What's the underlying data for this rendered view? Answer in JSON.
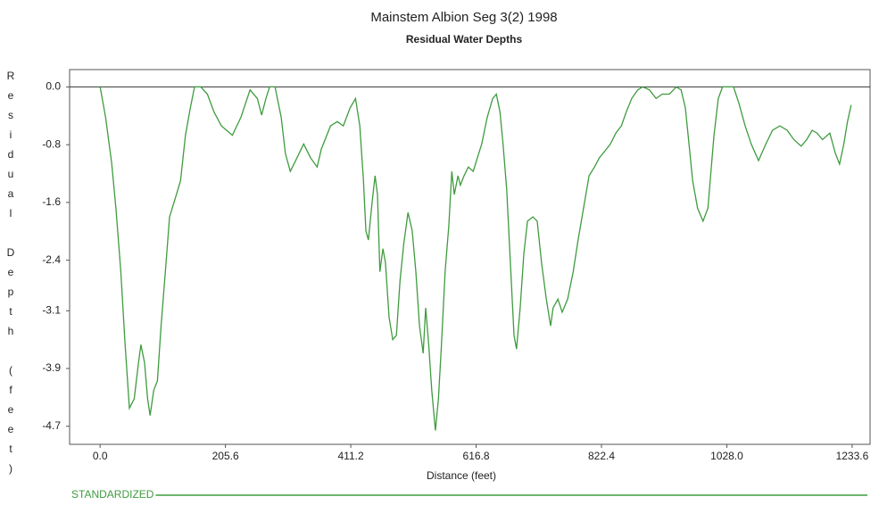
{
  "chart_data": {
    "type": "line",
    "title": "Mainstem Albion Seg 3(2)  1998",
    "subtitle": "Residual Water Depths",
    "xlabel": "Distance (feet)",
    "ylabel": "Residual Depth (feet)",
    "xlim": [
      -50,
      1263
    ],
    "ylim": [
      -4.95,
      0.24
    ],
    "xticks": [
      {
        "value": 0,
        "label": "0.0"
      },
      205.6,
      411.2,
      616.8,
      822.4,
      {
        "value": 1028,
        "label": "1028.0"
      },
      1233.6
    ],
    "yticks": [
      {
        "value": 0,
        "label": "0.0"
      },
      -0.8,
      -1.6,
      -2.4,
      -3.1,
      -3.9,
      -4.7
    ],
    "x": [
      0,
      9,
      19,
      26,
      34,
      41,
      48,
      56,
      63,
      67,
      73,
      78,
      82,
      88,
      94,
      100,
      107,
      114,
      123,
      132,
      140,
      148,
      155,
      165,
      176,
      187,
      199,
      217,
      231,
      246,
      258,
      265,
      272,
      278,
      287,
      297,
      304,
      312,
      319,
      334,
      345,
      356,
      363,
      378,
      389,
      399,
      410,
      419,
      426,
      432,
      436,
      440,
      446,
      451,
      455,
      459,
      464,
      468,
      474,
      480,
      486,
      492,
      498,
      505,
      512,
      518,
      524,
      530,
      534,
      539,
      544,
      550,
      555,
      560,
      566,
      572,
      577,
      581,
      587,
      591,
      597,
      604,
      612,
      619,
      626,
      635,
      644,
      650,
      656,
      661,
      667,
      673,
      679,
      683,
      689,
      695,
      701,
      710,
      717,
      724,
      732,
      739,
      743,
      751,
      758,
      767,
      776,
      784,
      793,
      802,
      811,
      819,
      828,
      837,
      846,
      855,
      863,
      872,
      882,
      890,
      901,
      912,
      922,
      934,
      945,
      953,
      960,
      966,
      972,
      980,
      989,
      997,
      1002,
      1007,
      1014,
      1021,
      1039,
      1048,
      1058,
      1068,
      1080,
      1092,
      1103,
      1115,
      1127,
      1138,
      1150,
      1159,
      1168,
      1176,
      1185,
      1197,
      1206,
      1213,
      1220,
      1226,
      1232
    ],
    "series": [
      {
        "name": "STANDARDIZED",
        "color": "#3f9b3f",
        "values": [
          0,
          -0.42,
          -1.05,
          -1.68,
          -2.56,
          -3.57,
          -4.45,
          -4.32,
          -3.82,
          -3.57,
          -3.82,
          -4.32,
          -4.55,
          -4.2,
          -4.07,
          -3.31,
          -2.56,
          -1.8,
          -1.55,
          -1.3,
          -0.67,
          -0.29,
          0,
          0,
          -0.1,
          -0.35,
          -0.54,
          -0.67,
          -0.42,
          -0.04,
          -0.16,
          -0.39,
          -0.16,
          0,
          0,
          -0.42,
          -0.92,
          -1.17,
          -1.05,
          -0.79,
          -0.98,
          -1.11,
          -0.86,
          -0.54,
          -0.48,
          -0.54,
          -0.29,
          -0.16,
          -0.54,
          -1.3,
          -1.99,
          -2.12,
          -1.61,
          -1.23,
          -1.49,
          -2.56,
          -2.24,
          -2.43,
          -3.19,
          -3.5,
          -3.44,
          -2.68,
          -2.18,
          -1.74,
          -1.99,
          -2.56,
          -3.31,
          -3.69,
          -3.06,
          -3.57,
          -4.2,
          -4.76,
          -4.32,
          -3.57,
          -2.56,
          -1.93,
          -1.17,
          -1.49,
          -1.23,
          -1.36,
          -1.23,
          -1.11,
          -1.17,
          -0.98,
          -0.79,
          -0.42,
          -0.16,
          -0.1,
          -0.35,
          -0.79,
          -1.42,
          -2.43,
          -3.44,
          -3.63,
          -3.06,
          -2.31,
          -1.86,
          -1.8,
          -1.86,
          -2.43,
          -2.94,
          -3.31,
          -3.06,
          -2.94,
          -3.12,
          -2.94,
          -2.56,
          -2.12,
          -1.68,
          -1.23,
          -1.11,
          -0.98,
          -0.89,
          -0.79,
          -0.64,
          -0.54,
          -0.35,
          -0.16,
          -0.04,
          0,
          -0.04,
          -0.16,
          -0.1,
          -0.1,
          0,
          -0.04,
          -0.29,
          -0.79,
          -1.3,
          -1.68,
          -1.86,
          -1.68,
          -1.17,
          -0.67,
          -0.16,
          0,
          0,
          -0.23,
          -0.54,
          -0.79,
          -1.02,
          -0.79,
          -0.6,
          -0.54,
          -0.6,
          -0.73,
          -0.82,
          -0.73,
          -0.6,
          -0.64,
          -0.73,
          -0.64,
          -0.92,
          -1.07,
          -0.79,
          -0.48,
          -0.25
        ]
      }
    ]
  }
}
